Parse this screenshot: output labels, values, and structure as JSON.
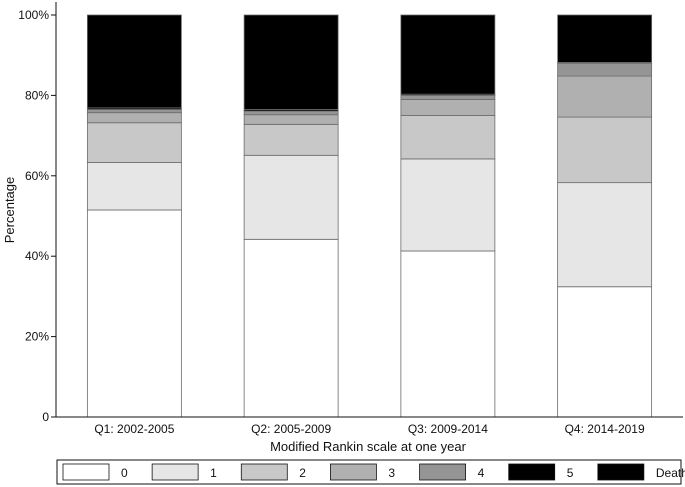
{
  "chart_data": {
    "type": "bar",
    "stacked": true,
    "xlabel": "Modified Rankin scale at one year",
    "ylabel": "Percentage",
    "ylim": [
      0,
      100
    ],
    "yticks": [
      0,
      20,
      40,
      60,
      80,
      100
    ],
    "ytick_labels": [
      "0",
      "20%",
      "40%",
      "60%",
      "80%",
      "100%"
    ],
    "categories": [
      "Q1: 2002-2005",
      "Q2: 2005-2009",
      "Q3: 2009-2014",
      "Q4: 2014-2019"
    ],
    "grid": false,
    "legend_position": "bottom",
    "series": [
      {
        "name": "0",
        "color": "#ffffff",
        "values": [
          51.5,
          44.2,
          41.3,
          32.4
        ]
      },
      {
        "name": "1",
        "color": "#e6e6e6",
        "values": [
          11.8,
          20.9,
          22.9,
          25.9
        ]
      },
      {
        "name": "2",
        "color": "#c8c8c8",
        "values": [
          9.9,
          7.7,
          10.8,
          16.3
        ]
      },
      {
        "name": "3",
        "color": "#b0b0b0",
        "values": [
          2.5,
          2.4,
          4.0,
          10.2
        ]
      },
      {
        "name": "4",
        "color": "#959595",
        "values": [
          0.8,
          0.9,
          1.0,
          3.2
        ]
      },
      {
        "name": "5",
        "color": "#000000",
        "values": [
          0.4,
          0.4,
          0.3,
          0.2
        ]
      },
      {
        "name": "Death",
        "color": "#000000",
        "values": [
          23.1,
          23.5,
          19.7,
          11.8
        ]
      }
    ]
  }
}
